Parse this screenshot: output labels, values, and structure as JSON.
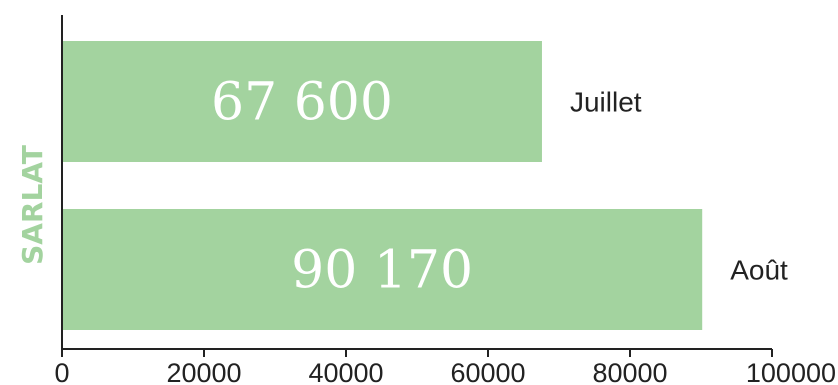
{
  "chart_data": {
    "type": "bar",
    "orientation": "horizontal",
    "title": "",
    "ylabel": "SARLAT",
    "xlabel": "",
    "categories": [
      "Juillet",
      "Août"
    ],
    "values": [
      67600,
      90170
    ],
    "value_labels": [
      "67 600",
      "90 170"
    ],
    "xlim": [
      0,
      100000
    ],
    "xticks": [
      0,
      20000,
      40000,
      60000,
      80000,
      100000
    ],
    "xtick_labels": [
      "0",
      "20000",
      "40000",
      "60000",
      "80000",
      "100000"
    ],
    "grid": false,
    "legend": "none",
    "colors": {
      "bar": "#a3d39f",
      "ylabel": "#a3d39f",
      "axis": "#222222",
      "value_text": "#ffffff",
      "label_text": "#222222"
    }
  }
}
